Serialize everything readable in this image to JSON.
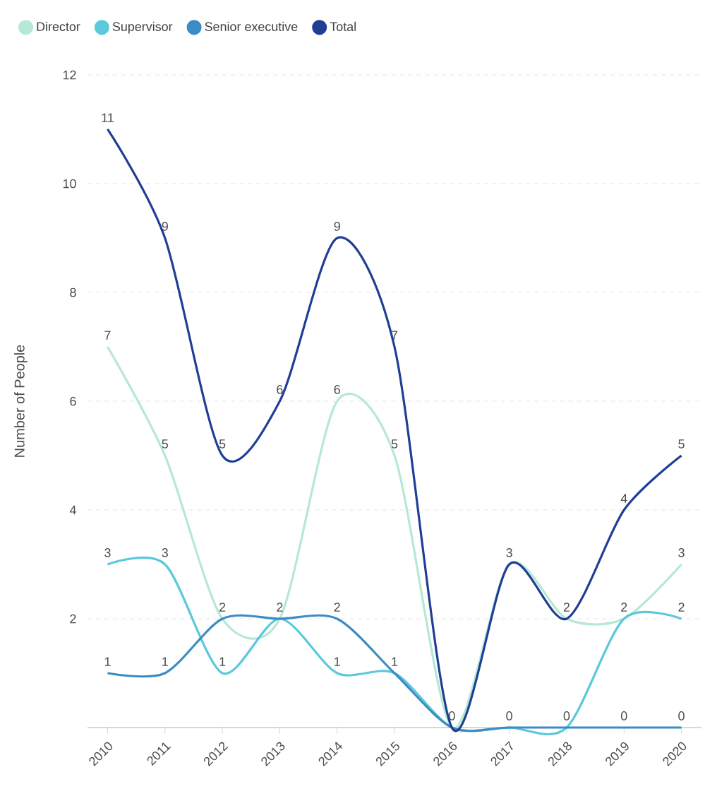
{
  "chart_data": {
    "type": "line",
    "ylabel": "Number of People",
    "categories": [
      "2010",
      "2011",
      "2012",
      "2013",
      "2014",
      "2015",
      "2016",
      "2017",
      "2018",
      "2019",
      "2020"
    ],
    "series": [
      {
        "name": "Director",
        "color": "#b5e8d5",
        "values": [
          7,
          5,
          2,
          2,
          6,
          5,
          0,
          3,
          2,
          2,
          3
        ],
        "value_labels": [
          "7",
          "5",
          null,
          null,
          "6",
          "5",
          "0",
          null,
          null,
          null,
          "3"
        ]
      },
      {
        "name": "Supervisor",
        "color": "#5bc8dc",
        "values": [
          3,
          3,
          1,
          2,
          1,
          1,
          0,
          0,
          0,
          2,
          2
        ],
        "value_labels": [
          "3",
          "3",
          "1",
          null,
          "1",
          "1",
          null,
          "0",
          "0",
          "2",
          "2"
        ]
      },
      {
        "name": "Senior executive",
        "color": "#3a8cc4",
        "values": [
          1,
          1,
          2,
          2,
          2,
          1,
          0,
          0,
          0,
          0,
          0
        ],
        "value_labels": [
          "1",
          "1",
          "2",
          "2",
          "2",
          null,
          null,
          null,
          null,
          "0",
          "0"
        ]
      },
      {
        "name": "Total",
        "color": "#1f3f94",
        "values": [
          11,
          9,
          5,
          6,
          9,
          7,
          0,
          3,
          2,
          4,
          5
        ],
        "value_labels": [
          "11",
          "9",
          "5",
          "6",
          "9",
          "7",
          null,
          "3",
          "2",
          "4",
          "5"
        ]
      }
    ],
    "ylim": [
      0,
      12
    ],
    "yticks": [
      2,
      4,
      6,
      8,
      10,
      12
    ],
    "grid": "y",
    "legend": "top left",
    "marker": "none",
    "line_style": "solid"
  }
}
